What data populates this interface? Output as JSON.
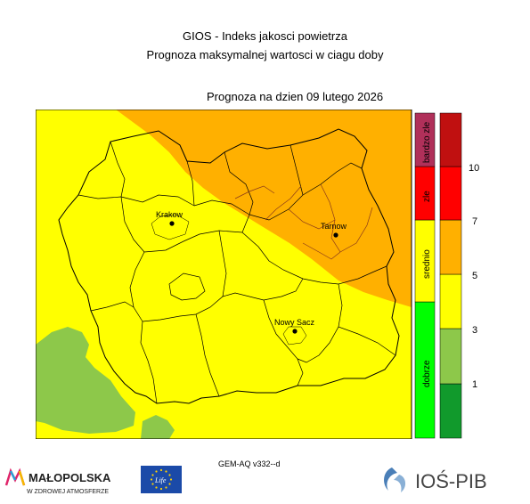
{
  "header": {
    "title": "GIOS - Indeks jakosci powietrza",
    "subtitle": "Prognoza maksymalnej wartosci w ciagu doby",
    "forecast_date": "Prognoza na dzien  09 lutego 2026"
  },
  "map": {
    "colors": {
      "dobrze_dark": "#1aa03a",
      "dobrze_light": "#8dc84a",
      "srednio": "#ffff00",
      "orange": "#ffb000",
      "zle": "#ff0000",
      "bardzo_zle": "#b01010",
      "border": "#8b3a1a"
    },
    "cities": [
      {
        "name": "Krakow"
      },
      {
        "name": "Tarnow"
      },
      {
        "name": "Nowy Sacz"
      }
    ]
  },
  "legend": {
    "categories": [
      {
        "label": "dobrze",
        "color": "#00ff00"
      },
      {
        "label": "srednio",
        "color": "#ffff00"
      },
      {
        "label": "zle",
        "color": "#ff0000"
      },
      {
        "label": "bardzo zle",
        "color": "#b0305a"
      }
    ],
    "scale_colors": [
      "#119a2c",
      "#8dc84a",
      "#ffff00",
      "#ffb000",
      "#ff0000",
      "#c01010"
    ],
    "scale_labels": [
      "1",
      "3",
      "5",
      "7",
      "10"
    ]
  },
  "footer": {
    "model": "GEM-AQ v332--d",
    "logo_malopolska": "MAŁOPOLSKA",
    "logo_malopolska_tagline": "W ZDROWEJ ATMOSFERZE",
    "logo_eu_text": "Life",
    "logo_ios": "IOŚ-PIB"
  }
}
